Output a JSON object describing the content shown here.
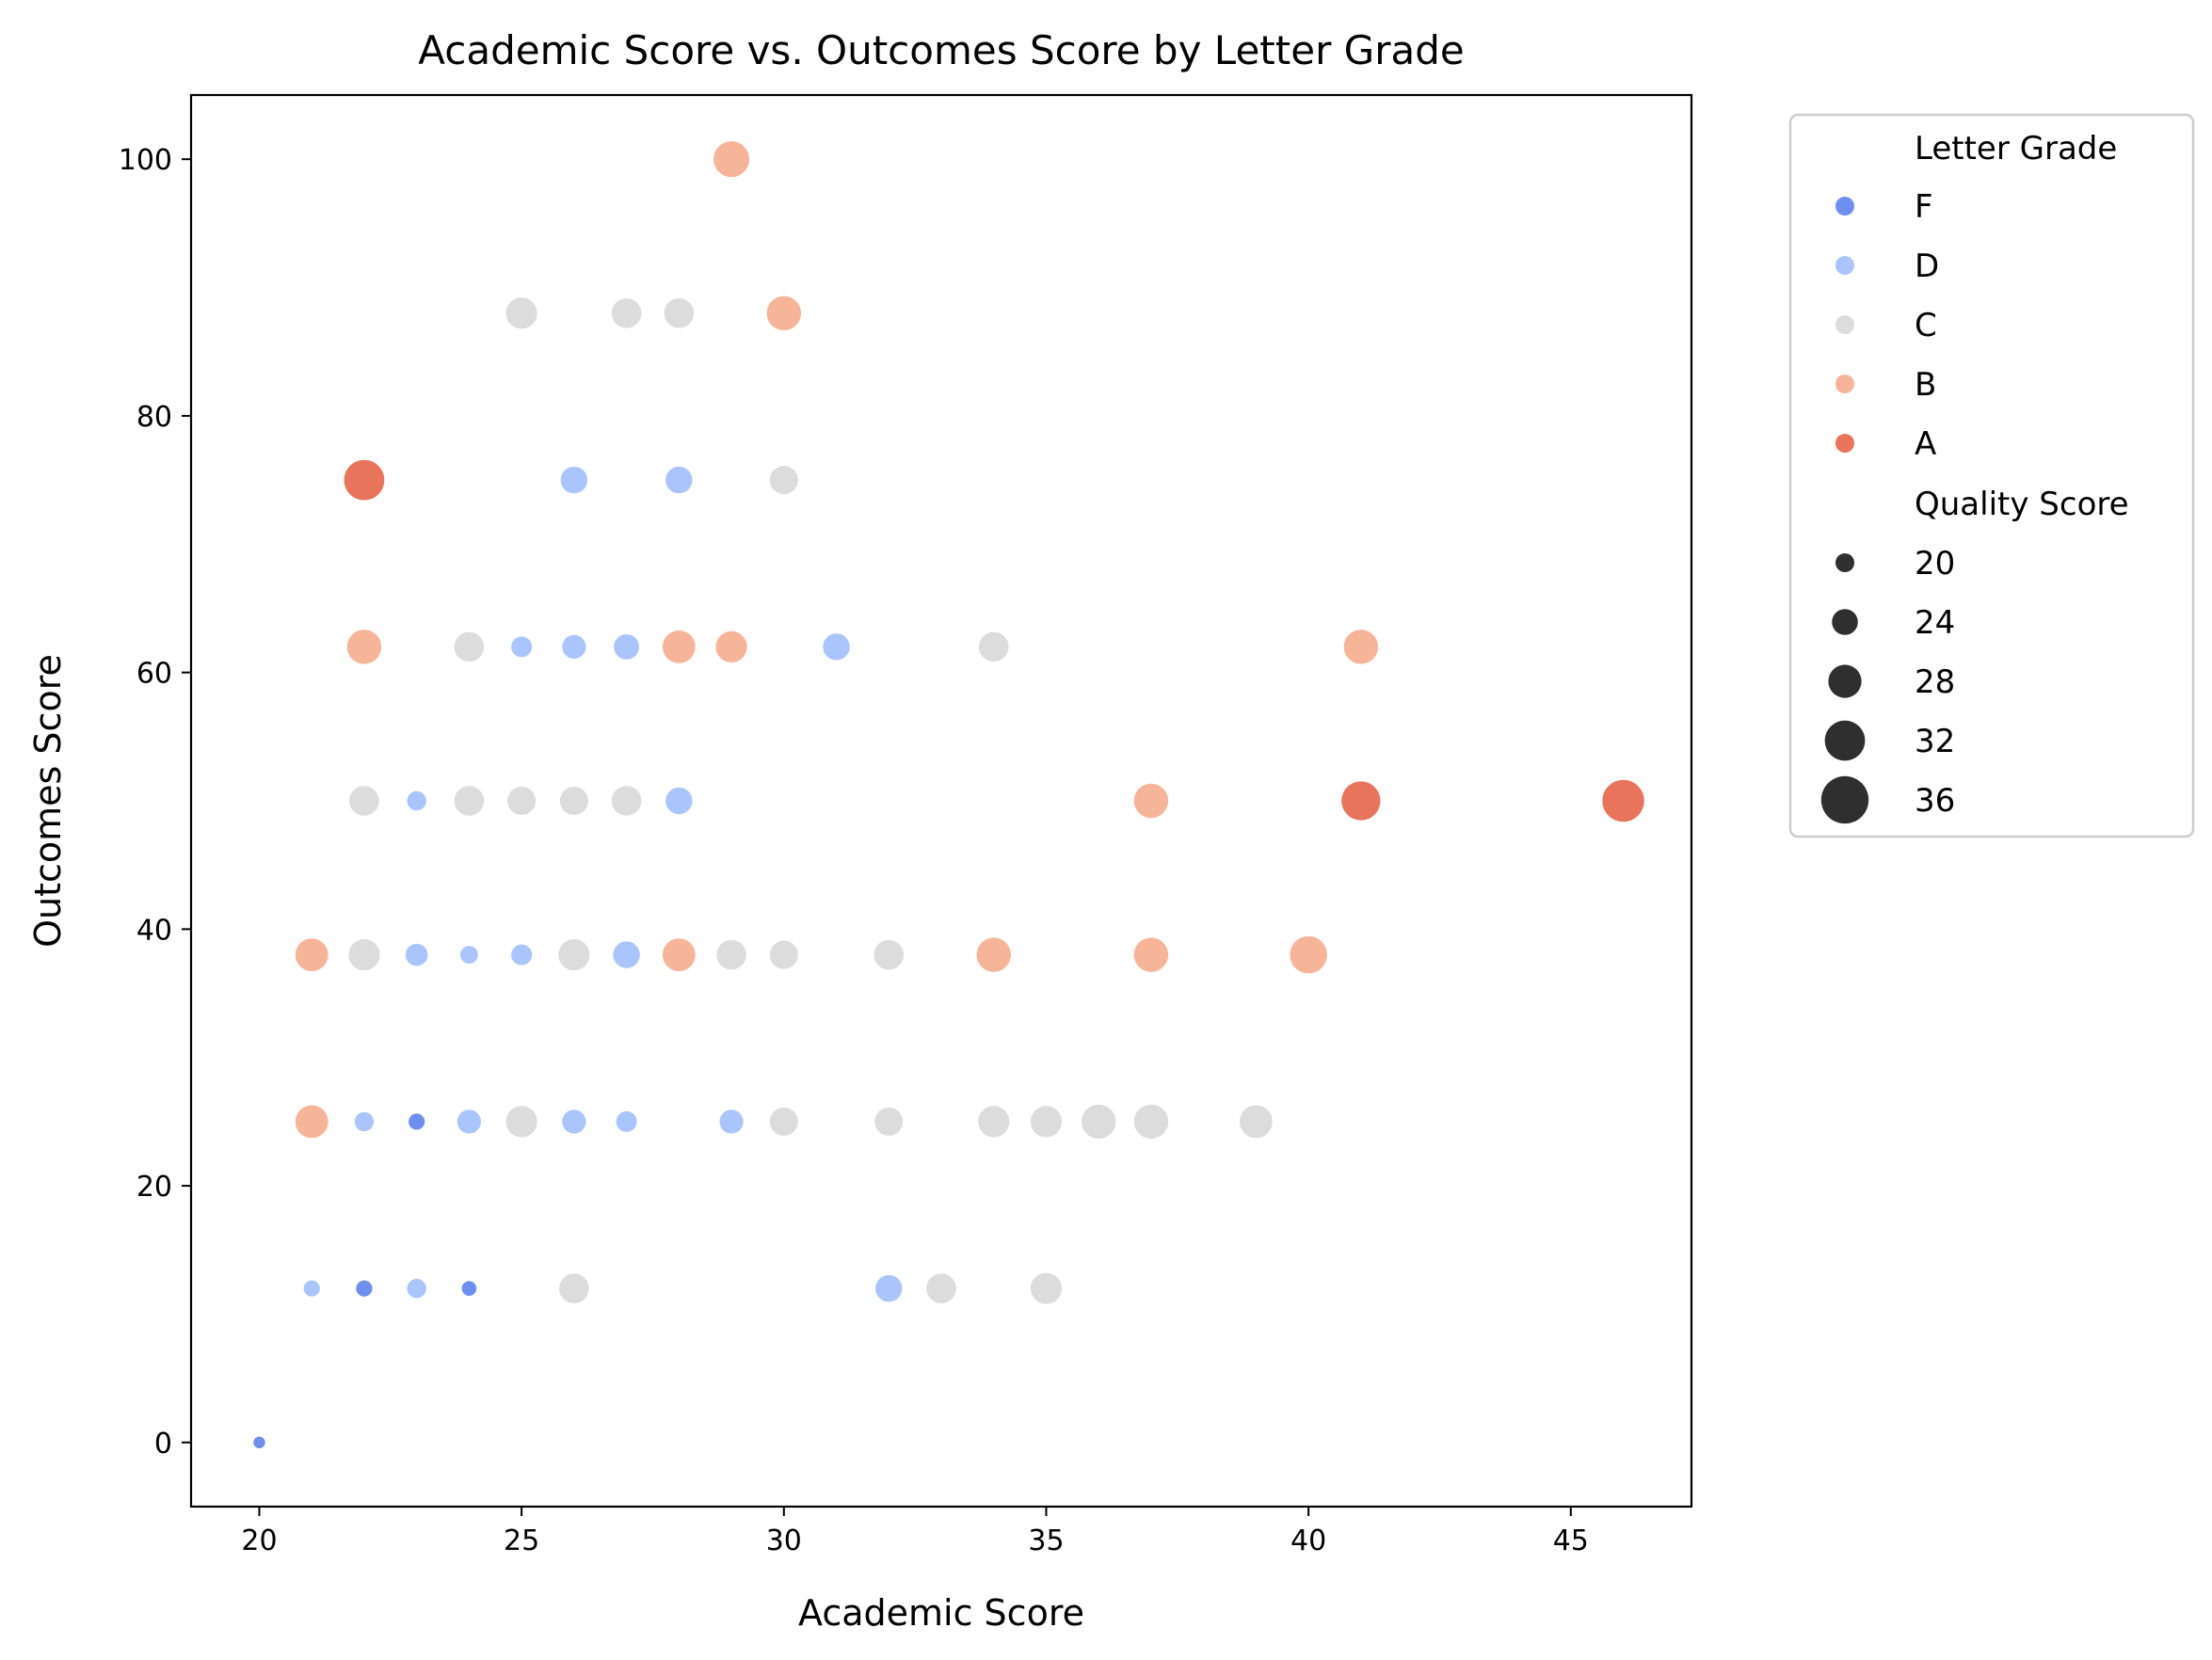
{
  "chart_data": {
    "type": "scatter",
    "title": "Academic Score vs. Outcomes Score by Letter Grade",
    "xlabel": "Academic Score",
    "ylabel": "Outcomes Score",
    "xlim": [
      18.7,
      47.3
    ],
    "ylim": [
      -5,
      105
    ],
    "xticks": [
      "20",
      "25",
      "30",
      "35",
      "40",
      "45"
    ],
    "yticks": [
      "0",
      "20",
      "40",
      "60",
      "80",
      "100"
    ],
    "grid": false,
    "legend": {
      "placement": "outside-right",
      "hue_title": "Letter Grade",
      "size_title": "Quality Score",
      "size_entries": [
        "20",
        "24",
        "28",
        "32",
        "36"
      ]
    },
    "series": [
      {
        "name": "F",
        "color": "#6f8ff0",
        "points": [
          {
            "x": 20,
            "y": 0,
            "size": 18
          },
          {
            "x": 21,
            "y": 12,
            "size": 22
          },
          {
            "x": 22,
            "y": 12,
            "size": 21
          },
          {
            "x": 23,
            "y": 12,
            "size": 22
          },
          {
            "x": 24,
            "y": 12,
            "size": 20
          },
          {
            "x": 22,
            "y": 25,
            "size": 20
          },
          {
            "x": 23,
            "y": 25,
            "size": 21
          },
          {
            "x": 21,
            "y": 38,
            "size": 20
          },
          {
            "x": 22,
            "y": 38,
            "size": 22
          },
          {
            "x": 24,
            "y": 38,
            "size": 20
          },
          {
            "x": 26,
            "y": 38,
            "size": 23
          }
        ]
      },
      {
        "name": "D",
        "color": "#a9c5fb",
        "points": [
          {
            "x": 21,
            "y": 12,
            "size": 21
          },
          {
            "x": 23,
            "y": 12,
            "size": 23
          },
          {
            "x": 32,
            "y": 12,
            "size": 28
          },
          {
            "x": 22,
            "y": 25,
            "size": 23
          },
          {
            "x": 24,
            "y": 25,
            "size": 26
          },
          {
            "x": 26,
            "y": 25,
            "size": 26
          },
          {
            "x": 27,
            "y": 25,
            "size": 24
          },
          {
            "x": 29,
            "y": 25,
            "size": 26
          },
          {
            "x": 23,
            "y": 38,
            "size": 25
          },
          {
            "x": 24,
            "y": 38,
            "size": 22
          },
          {
            "x": 25,
            "y": 38,
            "size": 24
          },
          {
            "x": 27,
            "y": 38,
            "size": 28
          },
          {
            "x": 28,
            "y": 38,
            "size": 28
          },
          {
            "x": 30,
            "y": 38,
            "size": 27
          },
          {
            "x": 23,
            "y": 50,
            "size": 23
          },
          {
            "x": 25,
            "y": 50,
            "size": 27
          },
          {
            "x": 26,
            "y": 50,
            "size": 26
          },
          {
            "x": 27,
            "y": 50,
            "size": 28
          },
          {
            "x": 28,
            "y": 50,
            "size": 28
          },
          {
            "x": 25,
            "y": 62,
            "size": 24
          },
          {
            "x": 26,
            "y": 62,
            "size": 26
          },
          {
            "x": 27,
            "y": 62,
            "size": 27
          },
          {
            "x": 28,
            "y": 62,
            "size": 28
          },
          {
            "x": 29,
            "y": 62,
            "size": 27
          },
          {
            "x": 31,
            "y": 62,
            "size": 28
          },
          {
            "x": 26,
            "y": 75,
            "size": 28
          },
          {
            "x": 28,
            "y": 75,
            "size": 28
          }
        ]
      },
      {
        "name": "C",
        "color": "#dcdcdc",
        "points": [
          {
            "x": 26,
            "y": 12,
            "size": 30
          },
          {
            "x": 33,
            "y": 12,
            "size": 30
          },
          {
            "x": 35,
            "y": 12,
            "size": 31
          },
          {
            "x": 25,
            "y": 25,
            "size": 31
          },
          {
            "x": 30,
            "y": 25,
            "size": 29
          },
          {
            "x": 32,
            "y": 25,
            "size": 29
          },
          {
            "x": 34,
            "y": 25,
            "size": 31
          },
          {
            "x": 35,
            "y": 25,
            "size": 31
          },
          {
            "x": 36,
            "y": 25,
            "size": 33
          },
          {
            "x": 37,
            "y": 25,
            "size": 33
          },
          {
            "x": 39,
            "y": 25,
            "size": 32
          },
          {
            "x": 22,
            "y": 38,
            "size": 31
          },
          {
            "x": 26,
            "y": 38,
            "size": 31
          },
          {
            "x": 29,
            "y": 38,
            "size": 30
          },
          {
            "x": 30,
            "y": 38,
            "size": 29
          },
          {
            "x": 32,
            "y": 38,
            "size": 30
          },
          {
            "x": 22,
            "y": 50,
            "size": 30
          },
          {
            "x": 24,
            "y": 50,
            "size": 30
          },
          {
            "x": 25,
            "y": 50,
            "size": 29
          },
          {
            "x": 26,
            "y": 50,
            "size": 29
          },
          {
            "x": 27,
            "y": 50,
            "size": 30
          },
          {
            "x": 24,
            "y": 62,
            "size": 30
          },
          {
            "x": 34,
            "y": 62,
            "size": 30
          },
          {
            "x": 30,
            "y": 75,
            "size": 29
          },
          {
            "x": 25,
            "y": 88,
            "size": 31
          },
          {
            "x": 27,
            "y": 88,
            "size": 30
          },
          {
            "x": 28,
            "y": 88,
            "size": 30
          }
        ]
      },
      {
        "name": "B",
        "color": "#f6b599",
        "points": [
          {
            "x": 21,
            "y": 25,
            "size": 32
          },
          {
            "x": 21,
            "y": 38,
            "size": 32
          },
          {
            "x": 28,
            "y": 38,
            "size": 32
          },
          {
            "x": 34,
            "y": 38,
            "size": 33
          },
          {
            "x": 37,
            "y": 38,
            "size": 33
          },
          {
            "x": 40,
            "y": 38,
            "size": 35
          },
          {
            "x": 37,
            "y": 50,
            "size": 33
          },
          {
            "x": 22,
            "y": 62,
            "size": 33
          },
          {
            "x": 28,
            "y": 62,
            "size": 32
          },
          {
            "x": 29,
            "y": 62,
            "size": 31
          },
          {
            "x": 41,
            "y": 62,
            "size": 33
          },
          {
            "x": 30,
            "y": 88,
            "size": 33
          },
          {
            "x": 29,
            "y": 100,
            "size": 34
          }
        ]
      },
      {
        "name": "A",
        "color": "#e7745b",
        "points": [
          {
            "x": 22,
            "y": 75,
            "size": 37
          },
          {
            "x": 41,
            "y": 50,
            "size": 36
          },
          {
            "x": 46,
            "y": 50,
            "size": 38
          }
        ]
      }
    ]
  }
}
